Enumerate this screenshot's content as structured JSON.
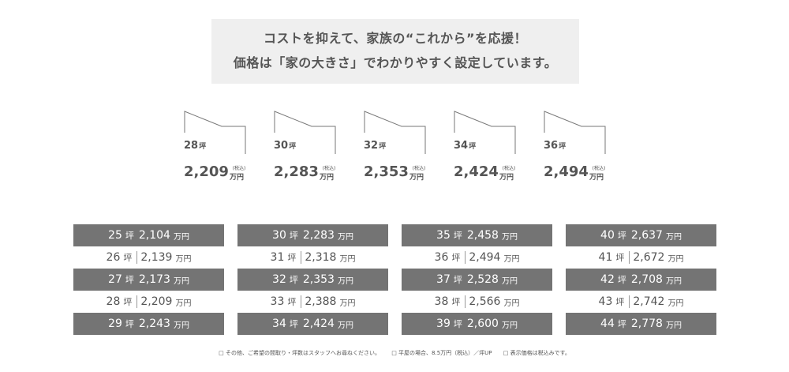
{
  "header": {
    "line1": "コストを抑えて、家族の“これから”を応援！",
    "line2": "価格は「家の大きさ」でわかりやすく設定しています。"
  },
  "house_units": {
    "tsubo_unit": "坪",
    "tax_label": "(税込)",
    "man_unit": "万円"
  },
  "houses": [
    {
      "tsubo": "28",
      "price": "2,209"
    },
    {
      "tsubo": "30",
      "price": "2,283"
    },
    {
      "tsubo": "32",
      "price": "2,353"
    },
    {
      "tsubo": "34",
      "price": "2,424"
    },
    {
      "tsubo": "36",
      "price": "2,494"
    }
  ],
  "table_units": {
    "tsubo_unit": "坪",
    "man_unit": "万円"
  },
  "price_table": [
    [
      {
        "tsubo": "25",
        "price": "2,104"
      },
      {
        "tsubo": "26",
        "price": "2,139"
      },
      {
        "tsubo": "27",
        "price": "2,173"
      },
      {
        "tsubo": "28",
        "price": "2,209"
      },
      {
        "tsubo": "29",
        "price": "2,243"
      }
    ],
    [
      {
        "tsubo": "30",
        "price": "2,283"
      },
      {
        "tsubo": "31",
        "price": "2,318"
      },
      {
        "tsubo": "32",
        "price": "2,353"
      },
      {
        "tsubo": "33",
        "price": "2,388"
      },
      {
        "tsubo": "34",
        "price": "2,424"
      }
    ],
    [
      {
        "tsubo": "35",
        "price": "2,458"
      },
      {
        "tsubo": "36",
        "price": "2,494"
      },
      {
        "tsubo": "37",
        "price": "2,528"
      },
      {
        "tsubo": "38",
        "price": "2,566"
      },
      {
        "tsubo": "39",
        "price": "2,600"
      }
    ],
    [
      {
        "tsubo": "40",
        "price": "2,637"
      },
      {
        "tsubo": "41",
        "price": "2,672"
      },
      {
        "tsubo": "42",
        "price": "2,708"
      },
      {
        "tsubo": "43",
        "price": "2,742"
      },
      {
        "tsubo": "44",
        "price": "2,778"
      }
    ]
  ],
  "notes": [
    "□ その他、ご希望の間取り・坪数はスタッフへお尋ねください。",
    "□ 平屋の場合、8.5万円（税込）／坪UP",
    "□ 表示価格は税込みです。"
  ]
}
